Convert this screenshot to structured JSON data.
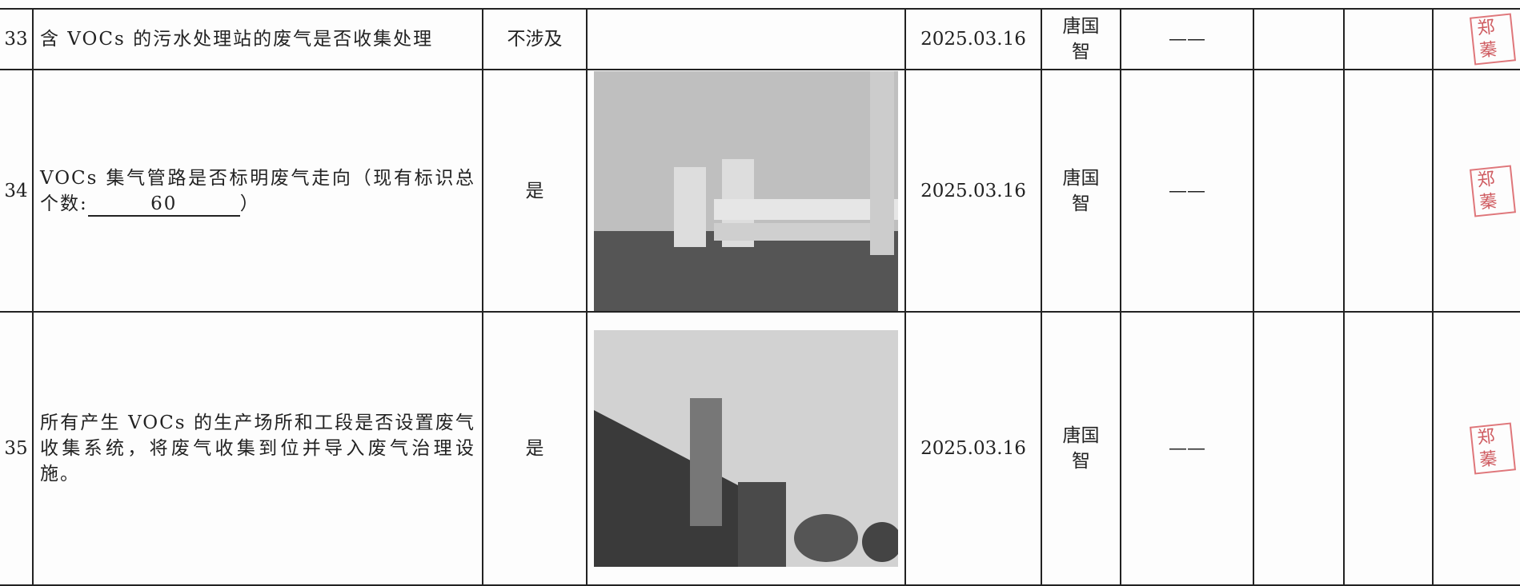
{
  "table": {
    "rows": [
      {
        "no": "33",
        "item": [
          "含 VOCs 的污水处理站的废气是否收集处理"
        ],
        "result": "不涉及",
        "date": "2025.03.16",
        "person": "唐国智",
        "note": "——",
        "stamp": "郑蓁"
      },
      {
        "no": "34",
        "item": [
          "VOCs 集气管路是否标明废气走向（现有标识总个数:",
          "60",
          "）"
        ],
        "result": "是",
        "date": "2025.03.16",
        "person": "唐国智",
        "note": "——",
        "stamp": "郑蓁"
      },
      {
        "no": "35",
        "item": [
          "所有产生 VOCs 的生产场所和工段是否设置废气收集系统，将废气收集到位并导入废气治理设施。"
        ],
        "result": "是",
        "date": "2025.03.16",
        "person": "唐国智",
        "note": "——",
        "stamp": "郑蓁"
      }
    ]
  }
}
